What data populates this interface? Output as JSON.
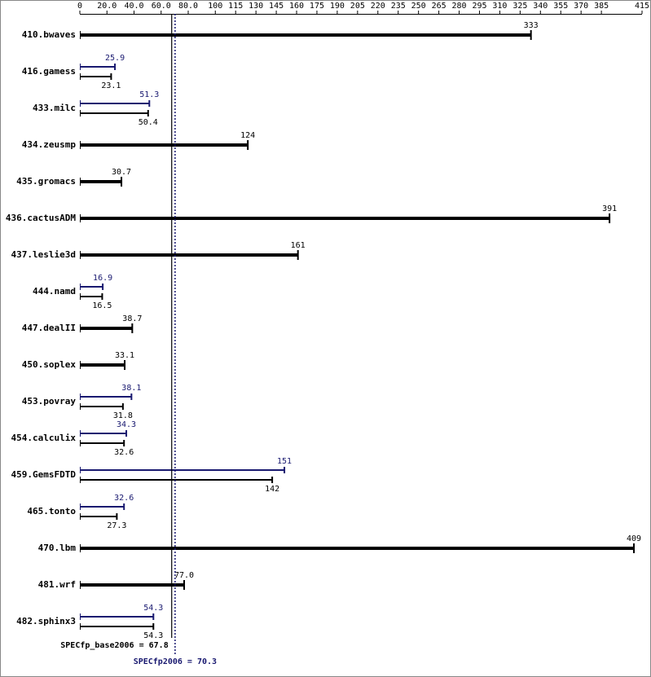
{
  "chart_data": {
    "type": "bar",
    "categories": [
      "410.bwaves",
      "416.gamess",
      "433.milc",
      "434.zeusmp",
      "435.gromacs",
      "436.cactusADM",
      "437.leslie3d",
      "444.namd",
      "447.dealII",
      "450.soplex",
      "453.povray",
      "454.calculix",
      "459.GemsFDTD",
      "465.tonto",
      "470.lbm",
      "481.wrf",
      "482.sphinx3"
    ],
    "series": [
      {
        "color": "#000000",
        "values": [
          333,
          23.1,
          50.4,
          124,
          30.7,
          391,
          161,
          16.5,
          38.7,
          33.1,
          31.8,
          32.6,
          142,
          27.3,
          409,
          77.0,
          54.3
        ],
        "value_labels": [
          "333",
          "23.1",
          "50.4",
          "124",
          "30.7",
          "391",
          "161",
          "16.5",
          "38.7",
          "33.1",
          "31.8",
          "32.6",
          "142",
          "27.3",
          "409",
          "77.0",
          "54.3"
        ]
      },
      {
        "color": "#191970",
        "values": [
          null,
          25.9,
          51.3,
          null,
          null,
          null,
          null,
          16.9,
          null,
          null,
          38.1,
          34.3,
          151,
          32.6,
          null,
          null,
          54.3
        ],
        "value_labels": [
          null,
          "25.9",
          "51.3",
          null,
          null,
          null,
          null,
          "16.9",
          null,
          null,
          "38.1",
          "34.3",
          "151",
          "32.6",
          null,
          null,
          "54.3"
        ]
      }
    ],
    "xlim": [
      0,
      415
    ],
    "xticks": [
      0,
      {
        "value": 20,
        "label": "20.0"
      },
      {
        "value": 40,
        "label": "40.0"
      },
      {
        "value": 60,
        "label": "60.0"
      },
      {
        "value": 80,
        "label": "80.0"
      },
      100,
      115,
      130,
      145,
      160,
      175,
      190,
      205,
      220,
      235,
      250,
      265,
      280,
      295,
      310,
      325,
      340,
      355,
      370,
      385,
      415
    ],
    "reference_lines": [
      {
        "label": "SPECfp_base2006 = 67.8",
        "value": 67.8,
        "color": "#000000",
        "style": "solid"
      },
      {
        "label": "SPECfp2006 = 70.3",
        "value": 70.3,
        "color": "#191970",
        "style": "dotted"
      }
    ]
  }
}
